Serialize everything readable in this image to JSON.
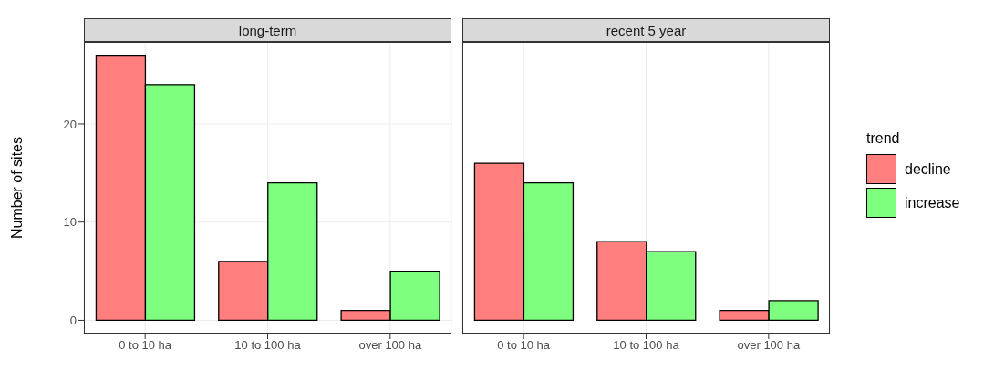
{
  "chart_data": [
    {
      "type": "bar",
      "title": "long-term",
      "ylabel": "Number of sites",
      "categories": [
        "0 to 10 ha",
        "10 to 100 ha",
        "over 100 ha"
      ],
      "series": [
        {
          "color": "#ff7f7f",
          "values": [
            27,
            6,
            1
          ]
        },
        {
          "color": "#7fff7f",
          "values": [
            24,
            14,
            5
          ]
        }
      ],
      "ylim": [
        -1.35,
        28.35
      ],
      "yticks": [
        0,
        10,
        20
      ],
      "grid": true
    },
    {
      "type": "bar",
      "title": "recent 5 year",
      "categories": [
        "0 to 10 ha",
        "10 to 100 ha",
        "over 100 ha"
      ],
      "series": [
        {
          "name": "decline",
          "color": "#ff7f7f",
          "values": [
            16,
            8,
            1
          ]
        },
        {
          "name": "increase",
          "color": "#7fff7f",
          "values": [
            14,
            7,
            2
          ]
        }
      ],
      "ylim": [
        -1.35,
        28.35
      ],
      "yticks": [
        0,
        10,
        20
      ],
      "grid": true,
      "tick_labels": "x",
      "legend": "right",
      "legend_title": "trend"
    }
  ]
}
